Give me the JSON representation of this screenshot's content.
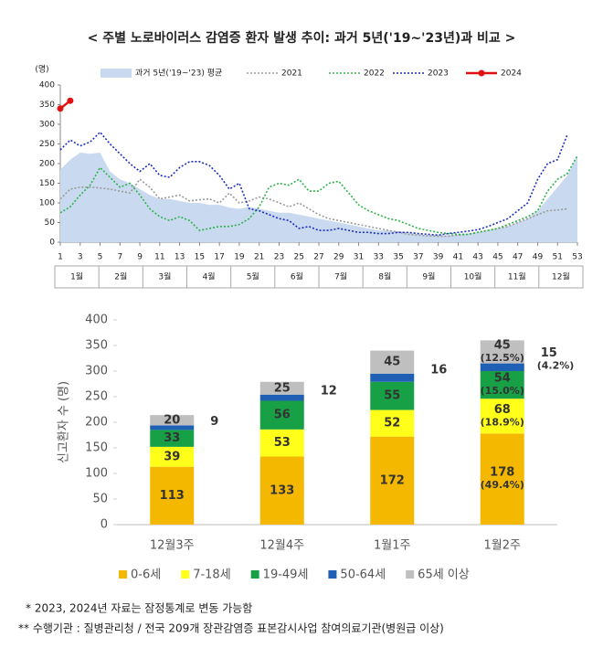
{
  "title": "< 주별 노로바이러스 감염증 환자 발생 추이: 과거 5년('19~'23년)과 비교 >",
  "chart_data": [
    {
      "type": "line",
      "y_label": "(명)",
      "x": [
        1,
        2,
        3,
        4,
        5,
        6,
        7,
        8,
        9,
        10,
        11,
        12,
        13,
        14,
        15,
        16,
        17,
        18,
        19,
        20,
        21,
        22,
        23,
        24,
        25,
        26,
        27,
        28,
        29,
        30,
        31,
        32,
        33,
        34,
        35,
        36,
        37,
        38,
        39,
        40,
        41,
        42,
        43,
        44,
        45,
        46,
        47,
        48,
        49,
        50,
        51,
        52,
        53
      ],
      "xlim": [
        1,
        53
      ],
      "xticks": [
        1,
        3,
        5,
        7,
        9,
        11,
        13,
        15,
        17,
        19,
        21,
        23,
        25,
        27,
        29,
        31,
        33,
        35,
        37,
        39,
        41,
        43,
        45,
        47,
        49,
        51,
        53
      ],
      "months": [
        "1월",
        "2월",
        "3월",
        "4월",
        "5월",
        "6월",
        "7월",
        "8월",
        "9월",
        "10월",
        "11월",
        "12월"
      ],
      "ylim": [
        0,
        400
      ],
      "yticks": [
        0,
        50,
        100,
        150,
        200,
        250,
        300,
        350,
        400
      ],
      "series": [
        {
          "name": "과거 5년('19~'23) 평균",
          "color": "#c9daf0",
          "area": true,
          "values": [
            185,
            210,
            228,
            225,
            228,
            180,
            160,
            150,
            135,
            120,
            110,
            110,
            105,
            100,
            100,
            95,
            95,
            88,
            85,
            90,
            85,
            80,
            75,
            75,
            70,
            65,
            60,
            55,
            50,
            45,
            40,
            35,
            30,
            30,
            28,
            25,
            20,
            18,
            18,
            18,
            20,
            22,
            25,
            30,
            35,
            40,
            50,
            60,
            80,
            110,
            140,
            170,
            220
          ]
        },
        {
          "name": "2021",
          "color": "#9a9a9a",
          "values": [
            110,
            135,
            140,
            140,
            138,
            135,
            130,
            125,
            160,
            140,
            110,
            115,
            120,
            105,
            108,
            110,
            100,
            125,
            100,
            105,
            115,
            110,
            100,
            90,
            100,
            85,
            70,
            60,
            55,
            50,
            45,
            40,
            35,
            30,
            25,
            20,
            18,
            16,
            15,
            15,
            18,
            20,
            25,
            30,
            35,
            40,
            50,
            60,
            70,
            80,
            82,
            85,
            null
          ]
        },
        {
          "name": "2022",
          "color": "#2db34a",
          "values": [
            75,
            90,
            120,
            145,
            190,
            165,
            140,
            150,
            120,
            85,
            65,
            55,
            65,
            55,
            30,
            35,
            40,
            40,
            45,
            60,
            90,
            140,
            150,
            145,
            160,
            130,
            130,
            150,
            155,
            125,
            95,
            80,
            70,
            60,
            55,
            45,
            35,
            30,
            25,
            22,
            20,
            20,
            25,
            30,
            35,
            45,
            55,
            65,
            80,
            130,
            160,
            175,
            220
          ]
        },
        {
          "name": "2023",
          "color": "#1a2dbf",
          "values": [
            235,
            260,
            245,
            255,
            280,
            250,
            225,
            200,
            180,
            200,
            170,
            165,
            190,
            205,
            205,
            195,
            170,
            135,
            150,
            85,
            80,
            70,
            60,
            55,
            35,
            40,
            30,
            30,
            35,
            30,
            25,
            25,
            22,
            22,
            25,
            25,
            22,
            20,
            18,
            22,
            25,
            28,
            32,
            40,
            50,
            60,
            80,
            100,
            160,
            200,
            210,
            275,
            null
          ]
        },
        {
          "name": "2024",
          "color": "#e01010",
          "markers": true,
          "values": [
            340,
            360,
            null,
            null,
            null,
            null,
            null,
            null,
            null,
            null,
            null,
            null,
            null,
            null,
            null,
            null,
            null,
            null,
            null,
            null,
            null,
            null,
            null,
            null,
            null,
            null,
            null,
            null,
            null,
            null,
            null,
            null,
            null,
            null,
            null,
            null,
            null,
            null,
            null,
            null,
            null,
            null,
            null,
            null,
            null,
            null,
            null,
            null,
            null,
            null,
            null,
            null,
            null
          ]
        }
      ]
    },
    {
      "type": "bar",
      "stacked": true,
      "y_label": "신고환자 수 (명)",
      "categories": [
        "12월3주",
        "12월4주",
        "1월1주",
        "1월2주"
      ],
      "ylim": [
        0,
        400
      ],
      "yticks": [
        0,
        50,
        100,
        150,
        200,
        250,
        300,
        350,
        400
      ],
      "series": [
        {
          "name": "0-6세",
          "color": "#f5b800",
          "values": [
            113,
            133,
            172,
            178
          ],
          "share_label": "(49.4%)"
        },
        {
          "name": "7-18세",
          "color": "#ffff1a",
          "values": [
            39,
            53,
            52,
            68
          ],
          "share_label": "(18.9%)"
        },
        {
          "name": "19-49세",
          "color": "#18a046",
          "values": [
            33,
            56,
            55,
            54
          ],
          "share_label": "(15.0%)"
        },
        {
          "name": "50-64세",
          "color": "#1f5fb4",
          "values": [
            9,
            12,
            16,
            15
          ],
          "share_label": "(4.2%)",
          "label_outside": true
        },
        {
          "name": "65세 이상",
          "color": "#bfbfbf",
          "values": [
            20,
            25,
            45,
            45
          ],
          "share_label": "(12.5%)"
        }
      ]
    }
  ],
  "notes": [
    "* 2023, 2024년 자료는 잠정통계로 변동 가능함",
    "** 수행기관 : 질병관리청 / 전국 209개 장관감염증 표본감시사업 참여의료기관(병원급 이상)"
  ]
}
